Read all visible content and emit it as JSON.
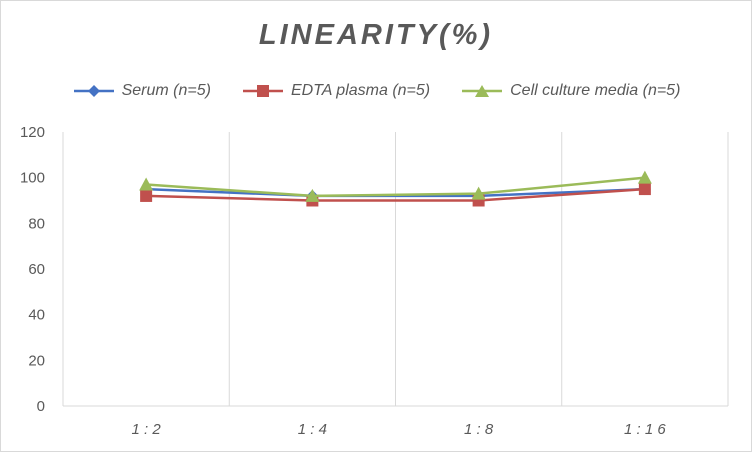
{
  "chart_data": {
    "type": "line",
    "title": "LINEARITY(%)",
    "categories": [
      "1:2",
      "1:4",
      "1:8",
      "1:16"
    ],
    "series": [
      {
        "name": "Serum (n=5)",
        "values": [
          95,
          92,
          92,
          95
        ],
        "color": "#4472c4",
        "marker": "diamond"
      },
      {
        "name": "EDTA plasma (n=5)",
        "values": [
          92,
          90,
          90,
          95
        ],
        "color": "#c0504d",
        "marker": "square"
      },
      {
        "name": "Cell culture media (n=5)",
        "values": [
          97,
          92,
          93,
          100
        ],
        "color": "#9bbb59",
        "marker": "triangle"
      }
    ],
    "xlabel": "",
    "ylabel": "",
    "ylim": [
      0,
      120
    ],
    "yticks": [
      0,
      20,
      40,
      60,
      80,
      100,
      120
    ],
    "grid": "vertical category gridlines",
    "legend_position": "top"
  }
}
